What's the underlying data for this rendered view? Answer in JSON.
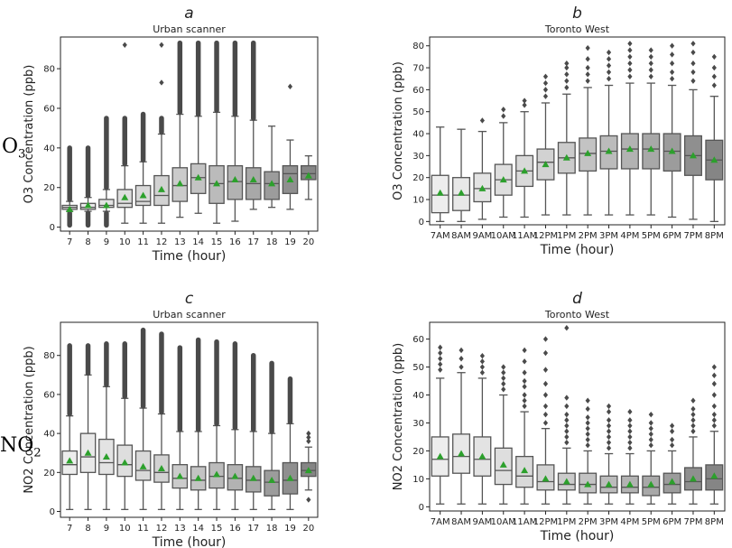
{
  "row_labels": [
    {
      "main": "O",
      "sub": "3"
    },
    {
      "main": "NO",
      "sub": "2"
    }
  ],
  "chart_data": [
    {
      "type": "box",
      "panel_letter": "a",
      "title": "Urban scanner",
      "xlabel": "Time (hour)",
      "ylabel": "O3 Concentration (ppb)",
      "categories": [
        "7",
        "8",
        "9",
        "10",
        "11",
        "12",
        "13",
        "14",
        "15",
        "16",
        "17",
        "18",
        "19",
        "20"
      ],
      "ylim": [
        -2,
        96
      ],
      "yticks": [
        0,
        20,
        40,
        60,
        80
      ],
      "grid": false,
      "mean_color": "#2ca02c",
      "box_colors": [
        "#ededed",
        "#e8e8e8",
        "#e3e3e3",
        "#dedede",
        "#d9d9d9",
        "#d2d2d2",
        "#cbcbcb",
        "#c3c3c3",
        "#bbbbbb",
        "#b2b2b2",
        "#a8a8a8",
        "#9c9c9c",
        "#8f8f8f",
        "#858585"
      ],
      "boxes": [
        {
          "q1": 9,
          "med": 10,
          "q3": 11,
          "wlo": 8,
          "whi": 13,
          "mean": 9,
          "out_lo": 1,
          "out_hi": 40,
          "dense": true
        },
        {
          "q1": 9,
          "med": 10,
          "q3": 12,
          "wlo": 8,
          "whi": 15,
          "mean": 11,
          "out_lo": 1,
          "out_hi": 40,
          "dense": true
        },
        {
          "q1": 10,
          "med": 11,
          "q3": 14,
          "wlo": 8,
          "whi": 19,
          "mean": 11,
          "out_lo": 1,
          "out_hi": 55,
          "dense": true
        },
        {
          "q1": 10,
          "med": 12,
          "q3": 19,
          "wlo": 2,
          "whi": 31,
          "mean": 15,
          "out_lo": null,
          "out_hi": 55,
          "extra": [
            92
          ],
          "dense": true
        },
        {
          "q1": 11,
          "med": 13,
          "q3": 21,
          "wlo": 2,
          "whi": 33,
          "mean": 16,
          "out_lo": null,
          "out_hi": 57,
          "dense": true
        },
        {
          "q1": 11,
          "med": 16,
          "q3": 26,
          "wlo": 2,
          "whi": 47,
          "mean": 19,
          "out_lo": null,
          "out_hi": 55,
          "extra": [
            73,
            92
          ],
          "dense": true
        },
        {
          "q1": 13,
          "med": 21,
          "q3": 30,
          "wlo": 5,
          "whi": 57,
          "mean": 22,
          "out_lo": null,
          "out_hi": 93,
          "dense": true
        },
        {
          "q1": 17,
          "med": 25,
          "q3": 32,
          "wlo": 7,
          "whi": 56,
          "mean": 25,
          "out_lo": null,
          "out_hi": 93,
          "dense": true
        },
        {
          "q1": 12,
          "med": 22,
          "q3": 31,
          "wlo": 2,
          "whi": 58,
          "mean": 22,
          "out_lo": null,
          "out_hi": 93,
          "dense": true
        },
        {
          "q1": 14,
          "med": 23,
          "q3": 31,
          "wlo": 3,
          "whi": 56,
          "mean": 24,
          "out_lo": null,
          "out_hi": 93,
          "dense": true
        },
        {
          "q1": 14,
          "med": 22,
          "q3": 30,
          "wlo": 9,
          "whi": 54,
          "mean": 24,
          "out_lo": null,
          "out_hi": 93,
          "dense": true
        },
        {
          "q1": 14,
          "med": 22,
          "q3": 28,
          "wlo": 10,
          "whi": 51,
          "mean": 22,
          "out_lo": null,
          "out_hi": null,
          "dense": false
        },
        {
          "q1": 17,
          "med": 27,
          "q3": 31,
          "wlo": 9,
          "whi": 44,
          "mean": 24,
          "out_lo": null,
          "out_hi": null,
          "extra": [
            71
          ],
          "dense": false
        },
        {
          "q1": 24,
          "med": 27,
          "q3": 31,
          "wlo": 14,
          "whi": 36,
          "mean": 26,
          "out_lo": null,
          "out_hi": null,
          "dense": false
        }
      ]
    },
    {
      "type": "box",
      "panel_letter": "b",
      "title": "Toronto West",
      "xlabel": "Time (hour)",
      "ylabel": "O3 Concentration (ppb)",
      "categories": [
        "7AM",
        "8AM",
        "9AM",
        "10AM",
        "11AM",
        "12PM",
        "1PM",
        "2PM",
        "3PM",
        "4PM",
        "5PM",
        "6PM",
        "7PM",
        "8PM"
      ],
      "ylim": [
        -1.5,
        84
      ],
      "yticks": [
        0,
        10,
        20,
        30,
        40,
        50,
        60,
        70,
        80
      ],
      "grid": false,
      "mean_color": "#2ca02c",
      "box_colors": [
        "#ededed",
        "#e8e8e8",
        "#e3e3e3",
        "#dedede",
        "#d9d9d9",
        "#d2d2d2",
        "#cbcbcb",
        "#c3c3c3",
        "#bbbbbb",
        "#b2b2b2",
        "#a8a8a8",
        "#9c9c9c",
        "#8f8f8f",
        "#858585"
      ],
      "boxes": [
        {
          "q1": 4,
          "med": 12,
          "q3": 21,
          "wlo": 0,
          "whi": 43,
          "mean": 13,
          "extra": []
        },
        {
          "q1": 5,
          "med": 12,
          "q3": 20,
          "wlo": 0,
          "whi": 42,
          "mean": 13,
          "extra": []
        },
        {
          "q1": 9,
          "med": 15,
          "q3": 22,
          "wlo": 1,
          "whi": 41,
          "mean": 15,
          "extra": [
            46
          ]
        },
        {
          "q1": 12,
          "med": 19,
          "q3": 26,
          "wlo": 2,
          "whi": 45,
          "mean": 19,
          "extra": [
            48,
            51
          ]
        },
        {
          "q1": 16,
          "med": 23,
          "q3": 30,
          "wlo": 2,
          "whi": 50,
          "mean": 23,
          "extra": [
            53,
            55
          ]
        },
        {
          "q1": 19,
          "med": 27,
          "q3": 33,
          "wlo": 3,
          "whi": 54,
          "mean": 26,
          "extra": [
            57,
            60,
            63,
            66
          ]
        },
        {
          "q1": 22,
          "med": 29,
          "q3": 36,
          "wlo": 3,
          "whi": 58,
          "mean": 29,
          "extra": [
            61,
            64,
            67,
            70,
            72
          ]
        },
        {
          "q1": 23,
          "med": 31,
          "q3": 38,
          "wlo": 3,
          "whi": 61,
          "mean": 31,
          "extra": [
            64,
            67,
            70,
            74,
            79
          ]
        },
        {
          "q1": 24,
          "med": 32,
          "q3": 39,
          "wlo": 3,
          "whi": 62,
          "mean": 32,
          "extra": [
            65,
            68,
            71,
            74,
            77
          ]
        },
        {
          "q1": 24,
          "med": 33,
          "q3": 40,
          "wlo": 3,
          "whi": 63,
          "mean": 33,
          "extra": [
            66,
            69,
            72,
            75,
            78,
            81
          ]
        },
        {
          "q1": 24,
          "med": 33,
          "q3": 40,
          "wlo": 3,
          "whi": 63,
          "mean": 33,
          "extra": [
            66,
            69,
            72,
            75,
            78
          ]
        },
        {
          "q1": 23,
          "med": 32,
          "q3": 40,
          "wlo": 2,
          "whi": 62,
          "mean": 32,
          "extra": [
            65,
            68,
            72,
            76,
            80
          ]
        },
        {
          "q1": 21,
          "med": 30,
          "q3": 39,
          "wlo": 1,
          "whi": 60,
          "mean": 30,
          "extra": [
            64,
            68,
            72,
            77,
            81
          ]
        },
        {
          "q1": 19,
          "med": 28,
          "q3": 37,
          "wlo": 0,
          "whi": 57,
          "mean": 28,
          "extra": [
            62,
            66,
            70,
            75
          ]
        }
      ]
    },
    {
      "type": "box",
      "panel_letter": "c",
      "title": "Urban scanner",
      "xlabel": "Time (hour)",
      "ylabel": "NO2 Concentration (ppb)",
      "categories": [
        "7",
        "8",
        "9",
        "10",
        "11",
        "12",
        "13",
        "14",
        "15",
        "16",
        "17",
        "18",
        "19",
        "20"
      ],
      "ylim": [
        -3,
        97
      ],
      "yticks": [
        0,
        20,
        40,
        60,
        80
      ],
      "grid": false,
      "mean_color": "#2ca02c",
      "box_colors": [
        "#ededed",
        "#e8e8e8",
        "#e3e3e3",
        "#dedede",
        "#d9d9d9",
        "#d2d2d2",
        "#cbcbcb",
        "#c3c3c3",
        "#bbbbbb",
        "#b2b2b2",
        "#a8a8a8",
        "#9c9c9c",
        "#8f8f8f",
        "#858585"
      ],
      "boxes": [
        {
          "q1": 19,
          "med": 24,
          "q3": 31,
          "wlo": 1,
          "whi": 49,
          "mean": 26,
          "out_lo": null,
          "out_hi": 85,
          "dense": true
        },
        {
          "q1": 20,
          "med": 28,
          "q3": 40,
          "wlo": 1,
          "whi": 70,
          "mean": 30,
          "out_lo": null,
          "out_hi": 85,
          "dense": true
        },
        {
          "q1": 19,
          "med": 25,
          "q3": 37,
          "wlo": 1,
          "whi": 64,
          "mean": 28,
          "out_lo": null,
          "out_hi": 86,
          "dense": true
        },
        {
          "q1": 18,
          "med": 24,
          "q3": 34,
          "wlo": 1,
          "whi": 58,
          "mean": 25,
          "out_lo": null,
          "out_hi": 86,
          "dense": true
        },
        {
          "q1": 16,
          "med": 21,
          "q3": 31,
          "wlo": 1,
          "whi": 53,
          "mean": 23,
          "out_lo": null,
          "out_hi": 93,
          "dense": true
        },
        {
          "q1": 15,
          "med": 20,
          "q3": 29,
          "wlo": 1,
          "whi": 50,
          "mean": 22,
          "out_lo": null,
          "out_hi": 91,
          "dense": true
        },
        {
          "q1": 12,
          "med": 17,
          "q3": 24,
          "wlo": 1,
          "whi": 41,
          "mean": 18,
          "out_lo": null,
          "out_hi": 84,
          "dense": true
        },
        {
          "q1": 11,
          "med": 16,
          "q3": 23,
          "wlo": 1,
          "whi": 41,
          "mean": 17,
          "out_lo": null,
          "out_hi": 88,
          "dense": true
        },
        {
          "q1": 12,
          "med": 18,
          "q3": 25,
          "wlo": 1,
          "whi": 44,
          "mean": 19,
          "out_lo": null,
          "out_hi": 87,
          "dense": true
        },
        {
          "q1": 11,
          "med": 17,
          "q3": 24,
          "wlo": 1,
          "whi": 42,
          "mean": 18,
          "out_lo": null,
          "out_hi": 86,
          "dense": true
        },
        {
          "q1": 10,
          "med": 16,
          "q3": 23,
          "wlo": 1,
          "whi": 41,
          "mean": 17,
          "out_lo": null,
          "out_hi": 80,
          "dense": true
        },
        {
          "q1": 8,
          "med": 15,
          "q3": 21,
          "wlo": 1,
          "whi": 40,
          "mean": 16,
          "out_lo": null,
          "out_hi": 76,
          "dense": true
        },
        {
          "q1": 9,
          "med": 16,
          "q3": 25,
          "wlo": 1,
          "whi": 45,
          "mean": 17,
          "out_lo": null,
          "out_hi": 68,
          "dense": true
        },
        {
          "q1": 18,
          "med": 21,
          "q3": 25,
          "wlo": 11,
          "whi": 33,
          "mean": 21,
          "out_lo": null,
          "out_hi": null,
          "extra": [
            6,
            36,
            38,
            40
          ],
          "dense": false
        }
      ]
    },
    {
      "type": "box",
      "panel_letter": "d",
      "title": "Toronto West",
      "xlabel": "Time (hour)",
      "ylabel": "NO2 Concentration (ppb)",
      "categories": [
        "7AM",
        "8AM",
        "9AM",
        "10AM",
        "11AM",
        "12PM",
        "1PM",
        "2PM",
        "3PM",
        "4PM",
        "5PM",
        "6PM",
        "7PM",
        "8PM"
      ],
      "ylim": [
        -1.5,
        66
      ],
      "yticks": [
        0,
        10,
        20,
        30,
        40,
        50,
        60
      ],
      "grid": false,
      "mean_color": "#2ca02c",
      "box_colors": [
        "#ededed",
        "#e8e8e8",
        "#e3e3e3",
        "#dedede",
        "#d9d9d9",
        "#d2d2d2",
        "#cbcbcb",
        "#c3c3c3",
        "#bbbbbb",
        "#b2b2b2",
        "#a8a8a8",
        "#9c9c9c",
        "#8f8f8f",
        "#858585"
      ],
      "boxes": [
        {
          "q1": 11,
          "med": 17,
          "q3": 25,
          "wlo": 1,
          "whi": 46,
          "mean": 18,
          "extra": [
            49,
            51,
            53,
            55,
            57
          ]
        },
        {
          "q1": 12,
          "med": 18,
          "q3": 26,
          "wlo": 1,
          "whi": 48,
          "mean": 19,
          "extra": [
            50,
            53,
            56
          ]
        },
        {
          "q1": 11,
          "med": 17,
          "q3": 25,
          "wlo": 1,
          "whi": 46,
          "mean": 18,
          "extra": [
            48,
            50,
            52,
            54
          ]
        },
        {
          "q1": 8,
          "med": 13,
          "q3": 21,
          "wlo": 1,
          "whi": 40,
          "mean": 15,
          "extra": [
            42,
            44,
            46,
            48,
            50
          ]
        },
        {
          "q1": 7,
          "med": 11,
          "q3": 18,
          "wlo": 1,
          "whi": 34,
          "mean": 13,
          "extra": [
            36,
            38,
            40,
            43,
            45,
            48,
            52,
            56
          ]
        },
        {
          "q1": 6,
          "med": 9,
          "q3": 15,
          "wlo": 1,
          "whi": 28,
          "mean": 10,
          "extra": [
            30,
            33,
            36,
            40,
            44,
            49,
            55,
            60
          ]
        },
        {
          "q1": 6,
          "med": 8,
          "q3": 12,
          "wlo": 1,
          "whi": 21,
          "mean": 9,
          "extra": [
            23,
            25,
            27,
            29,
            31,
            33,
            36,
            39,
            64
          ]
        },
        {
          "q1": 5,
          "med": 8,
          "q3": 12,
          "wlo": 1,
          "whi": 20,
          "mean": 8,
          "extra": [
            22,
            24,
            26,
            28,
            30,
            32,
            35,
            38
          ]
        },
        {
          "q1": 5,
          "med": 7,
          "q3": 11,
          "wlo": 1,
          "whi": 19,
          "mean": 8,
          "extra": [
            21,
            23,
            25,
            27,
            29,
            31,
            34,
            36
          ]
        },
        {
          "q1": 5,
          "med": 7,
          "q3": 11,
          "wlo": 1,
          "whi": 19,
          "mean": 8,
          "extra": [
            21,
            23,
            25,
            27,
            29,
            31,
            34
          ]
        },
        {
          "q1": 4,
          "med": 7,
          "q3": 11,
          "wlo": 1,
          "whi": 20,
          "mean": 8,
          "extra": [
            22,
            24,
            26,
            28,
            30,
            33
          ]
        },
        {
          "q1": 5,
          "med": 8,
          "q3": 12,
          "wlo": 1,
          "whi": 20,
          "mean": 9,
          "extra": [
            22,
            24,
            27,
            29
          ]
        },
        {
          "q1": 6,
          "med": 9,
          "q3": 14,
          "wlo": 1,
          "whi": 25,
          "mean": 10,
          "extra": [
            27,
            29,
            31,
            33,
            35,
            38
          ]
        },
        {
          "q1": 6,
          "med": 10,
          "q3": 15,
          "wlo": 1,
          "whi": 27,
          "mean": 11,
          "extra": [
            29,
            31,
            33,
            36,
            40,
            44,
            47,
            50
          ]
        }
      ]
    }
  ]
}
